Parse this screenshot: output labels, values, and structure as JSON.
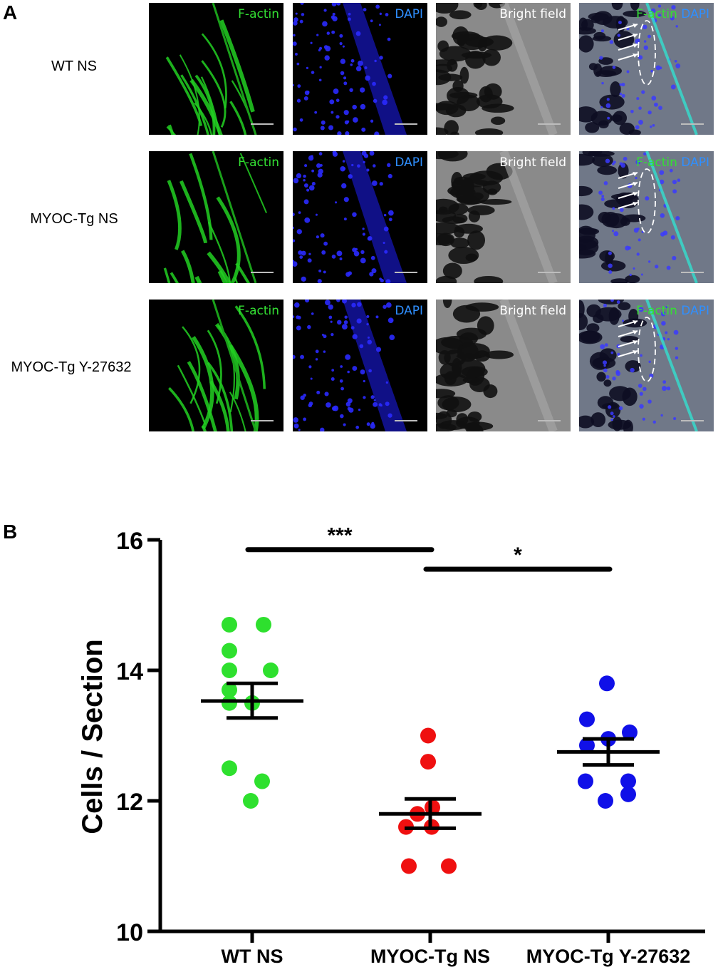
{
  "panel_a": {
    "letter": "A",
    "rows": [
      {
        "label": "WT NS"
      },
      {
        "label": "MYOC-Tg NS"
      },
      {
        "label": "MYOC-Tg Y-27632"
      }
    ],
    "channels": [
      {
        "label": "F-actin",
        "color": "#33e033"
      },
      {
        "label": "DAPI",
        "color": "#2f8fff"
      },
      {
        "label": "Bright field",
        "color": "#ffffff"
      },
      {
        "label_a": "F-actin",
        "label_b": "DAPI",
        "color_a": "#33e033",
        "color_b": "#2f8fff"
      }
    ]
  },
  "panel_b": {
    "letter": "B"
  },
  "chart_data": {
    "type": "scatter",
    "ylabel": "Cells / Section",
    "ylim": [
      10,
      16
    ],
    "yticks": [
      "10",
      "12",
      "14",
      "16"
    ],
    "categories": [
      "WT NS",
      "MYOC-Tg NS",
      "MYOC-Tg Y-27632"
    ],
    "series": [
      {
        "category": "WT NS",
        "color": "#2ee02e",
        "points": [
          14.7,
          14.7,
          14.3,
          14.0,
          14.0,
          13.7,
          13.5,
          13.5,
          12.5,
          12.3,
          12.0
        ],
        "mean": 13.53,
        "sem": [
          13.27,
          13.8
        ]
      },
      {
        "category": "MYOC-Tg NS",
        "color": "#ef1010",
        "points": [
          13.0,
          12.6,
          11.9,
          11.8,
          11.6,
          11.6,
          11.0,
          11.0
        ],
        "mean": 11.8,
        "sem": [
          11.58,
          12.03
        ]
      },
      {
        "category": "MYOC-Tg Y-27632",
        "color": "#1010e8",
        "points": [
          13.8,
          13.25,
          13.05,
          12.95,
          12.85,
          12.3,
          12.3,
          12.1,
          12.0
        ],
        "mean": 12.75,
        "sem": [
          12.55,
          12.95
        ]
      }
    ],
    "annotations": [
      {
        "from": "WT NS",
        "to": "MYOC-Tg NS",
        "label": "***",
        "y": 15.85
      },
      {
        "from": "MYOC-Tg NS",
        "to": "MYOC-Tg Y-27632",
        "label": "*",
        "y": 15.55
      }
    ]
  }
}
